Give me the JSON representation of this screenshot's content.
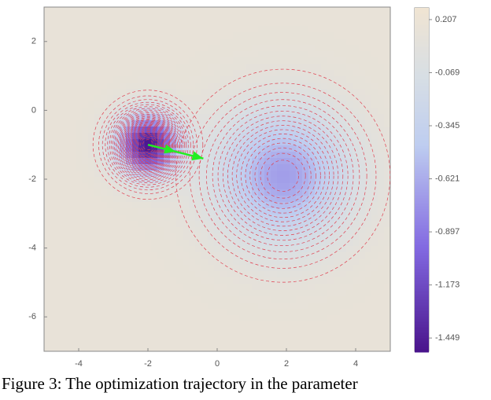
{
  "chart_data": {
    "type": "contour",
    "xlim": [
      -5,
      5
    ],
    "ylim": [
      -7,
      3
    ],
    "xticks": [
      -4,
      -2,
      0,
      2,
      4
    ],
    "yticks": [
      2,
      0,
      -2,
      -4,
      -6
    ],
    "base": 0.15,
    "wells": [
      {
        "x": -2,
        "y": -1,
        "depth": -1.65,
        "width": 0.6
      },
      {
        "x": 1.9,
        "y": -1.9,
        "depth": -0.85,
        "width": 1.3
      }
    ],
    "clim": [
      -1.518,
      0.268
    ],
    "cticks": [
      0.207,
      -0.069,
      -0.345,
      -0.621,
      -0.897,
      -1.173,
      -1.449
    ],
    "trajectory": {
      "color": "#22ee22",
      "x": [
        -2,
        -1.2,
        -0.4
      ],
      "y": [
        -1,
        -1.2,
        -1.4
      ]
    },
    "caption": "Figure 3: The optimization trajectory in the parameter"
  }
}
